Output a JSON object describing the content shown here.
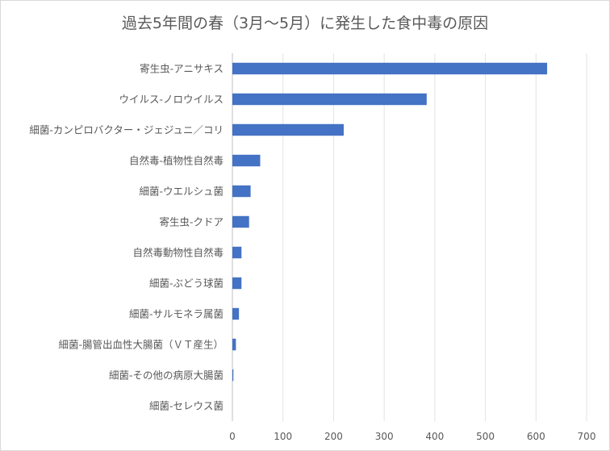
{
  "chart_data": {
    "type": "bar",
    "orientation": "horizontal",
    "title": "過去5年間の春（3月～5月）に発生した食中毒の原因",
    "categories": [
      "寄生虫-アニサキス",
      "ウイルス-ノロウイルス",
      "細菌-カンピロバクター・ジェジュニ／コリ",
      "自然毒-植物性自然毒",
      "細菌-ウエルシュ菌",
      "寄生虫-クドア",
      "自然毒動物性自然毒",
      "細菌-ぶどう球菌",
      "細菌-サルモネラ属菌",
      "細菌-腸管出血性大腸菌（ＶＴ産生）",
      "細菌-その他の病原大腸菌",
      "細菌-セレウス菌"
    ],
    "values": [
      622,
      384,
      220,
      55,
      36,
      33,
      18,
      18,
      13,
      7,
      2,
      0
    ],
    "xlim": [
      0,
      700
    ],
    "xticks": [
      "0",
      "100",
      "200",
      "300",
      "400",
      "500",
      "600",
      "700"
    ],
    "grid": "vertical",
    "legend": "none",
    "bar_color": "#4472c4"
  }
}
